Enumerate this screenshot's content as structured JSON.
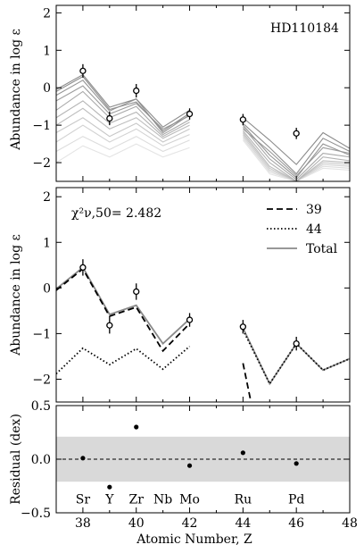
{
  "chart_data": [
    {
      "type": "line",
      "panel": "top",
      "annotation": "HD110184",
      "ylabel": "Abundance in log ε",
      "xlim": [
        37,
        48
      ],
      "ylim": [
        -2.5,
        2.2
      ],
      "yticks": [
        2,
        1,
        0,
        -1,
        -2
      ],
      "observed": [
        {
          "z": 38,
          "y": 0.45,
          "err": 0.18
        },
        {
          "z": 39,
          "y": -0.82,
          "err": 0.18
        },
        {
          "z": 40,
          "y": -0.08,
          "err": 0.18
        },
        {
          "z": 42,
          "y": -0.7,
          "err": 0.15
        },
        {
          "z": 44,
          "y": -0.85,
          "err": 0.15
        },
        {
          "z": 46,
          "y": -1.22,
          "err": 0.15
        }
      ],
      "model_lines": [
        {
          "shade": "#8a8a8a",
          "seg1": [
            -0.05,
            0.35,
            -0.52,
            -0.3,
            -1.05,
            -0.6
          ],
          "seg2": [
            -0.8,
            -1.4,
            -2.05,
            -1.2,
            -1.62,
            -1.55
          ]
        },
        {
          "shade": "#8f8f8f",
          "seg1": [
            -0.1,
            0.3,
            -0.58,
            -0.38,
            -1.15,
            -0.68
          ],
          "seg2": [
            -0.95,
            -1.6,
            -2.3,
            -1.35,
            -1.7,
            -1.6
          ]
        },
        {
          "shade": "#959595",
          "seg1": [
            -0.2,
            0.2,
            -0.62,
            -0.3,
            -1.2,
            -0.72
          ],
          "seg2": [
            -1.0,
            -1.8,
            -2.4,
            -1.5,
            -1.8,
            -1.65
          ]
        },
        {
          "shade": "#9e9e9e",
          "seg1": [
            -0.35,
            0.05,
            -0.7,
            -0.42,
            -1.1,
            -0.75
          ],
          "seg2": [
            -1.1,
            -1.7,
            -2.35,
            -1.6,
            -1.75,
            -1.7
          ]
        },
        {
          "shade": "#a8a8a8",
          "seg1": [
            -0.6,
            -0.1,
            -0.8,
            -0.5,
            -1.25,
            -0.85
          ],
          "seg2": [
            -1.05,
            -1.9,
            -2.45,
            -1.75,
            -1.85,
            -1.75
          ]
        },
        {
          "shade": "#b3b3b3",
          "seg1": [
            -0.8,
            -0.35,
            -0.95,
            -0.65,
            -1.3,
            -0.92
          ],
          "seg2": [
            -1.15,
            -2.0,
            -2.5,
            -1.85,
            -1.95,
            -1.8
          ]
        },
        {
          "shade": "#bdbdbd",
          "seg1": [
            -1.0,
            -0.55,
            -1.1,
            -0.8,
            -1.35,
            -1.0
          ],
          "seg2": [
            -1.2,
            -2.1,
            -2.5,
            -1.95,
            -2.0,
            -1.85
          ]
        },
        {
          "shade": "#c8c8c8",
          "seg1": [
            -1.2,
            -0.8,
            -1.3,
            -0.95,
            -1.45,
            -1.1
          ],
          "seg2": [
            -1.25,
            -2.15,
            -2.5,
            -2.0,
            -2.05,
            -1.9
          ]
        },
        {
          "shade": "#d2d2d2",
          "seg1": [
            -1.45,
            -1.0,
            -1.45,
            -1.1,
            -1.55,
            -1.25
          ],
          "seg2": [
            -1.3,
            -2.2,
            -2.5,
            -2.05,
            -2.1,
            -1.95
          ]
        },
        {
          "shade": "#dcdcdc",
          "seg1": [
            -1.7,
            -1.3,
            -1.65,
            -1.3,
            -1.7,
            -1.4
          ],
          "seg2": [
            -1.35,
            -2.25,
            -2.5,
            -2.1,
            -2.15,
            -2.0
          ]
        },
        {
          "shade": "#e4e4e4",
          "seg1": [
            -2.0,
            -1.55,
            -1.85,
            -1.5,
            -1.85,
            -1.6
          ],
          "seg2": [
            -1.4,
            -2.3,
            -2.5,
            -2.15,
            -2.2,
            -2.05
          ]
        }
      ]
    },
    {
      "type": "line",
      "panel": "middle",
      "annotation": "χ²ν,50= 2.482",
      "ylabel": "Abundance in log ε",
      "xlim": [
        37,
        48
      ],
      "ylim": [
        -2.5,
        2.2
      ],
      "yticks": [
        2,
        1,
        0,
        -1,
        -2
      ],
      "legend_position": "top-right",
      "legend": [
        "39",
        "44",
        "Total"
      ],
      "x": [
        37,
        38,
        39,
        40,
        41,
        42
      ],
      "series": [
        {
          "name": "39",
          "style": "dashed",
          "seg1": [
            -0.05,
            0.42,
            -0.62,
            -0.42,
            -1.38,
            -0.78
          ],
          "seg2x": [
            44,
            44.3
          ],
          "seg2": [
            -1.65,
            -2.5
          ]
        },
        {
          "name": "44",
          "style": "dotted",
          "seg1": [
            -1.88,
            -1.32,
            -1.68,
            -1.33,
            -1.78,
            -1.28
          ],
          "seg2x": [
            44,
            45,
            46,
            47,
            48
          ],
          "seg2": [
            -0.92,
            -2.1,
            -1.22,
            -1.8,
            -1.55
          ]
        },
        {
          "name": "Total",
          "style": "solid",
          "seg1": [
            -0.02,
            0.45,
            -0.58,
            -0.38,
            -1.22,
            -0.68
          ],
          "seg2x": [
            44,
            45,
            46,
            47,
            48
          ],
          "seg2": [
            -0.88,
            -2.1,
            -1.22,
            -1.8,
            -1.55
          ]
        }
      ],
      "observed": [
        {
          "z": 38,
          "y": 0.45,
          "err": 0.18
        },
        {
          "z": 39,
          "y": -0.82,
          "err": 0.18
        },
        {
          "z": 40,
          "y": -0.08,
          "err": 0.18
        },
        {
          "z": 42,
          "y": -0.7,
          "err": 0.15
        },
        {
          "z": 44,
          "y": -0.85,
          "err": 0.15
        },
        {
          "z": 46,
          "y": -1.22,
          "err": 0.15
        }
      ]
    },
    {
      "type": "scatter",
      "panel": "bottom",
      "ylabel": "Residual (dex)",
      "xlabel": "Atomic Number, Z",
      "xlim": [
        37,
        48
      ],
      "ylim": [
        -0.5,
        0.5
      ],
      "yticks": [
        "0.5",
        "0.0",
        "−0.5"
      ],
      "xticks": [
        "38",
        "40",
        "42",
        "44",
        "46",
        "48"
      ],
      "band": [
        -0.21,
        0.21
      ],
      "points": [
        {
          "z": 38,
          "y": 0.01
        },
        {
          "z": 39,
          "y": -0.26
        },
        {
          "z": 40,
          "y": 0.3
        },
        {
          "z": 42,
          "y": -0.06
        },
        {
          "z": 44,
          "y": 0.06
        },
        {
          "z": 46,
          "y": -0.04
        }
      ],
      "elements": [
        {
          "z": 38,
          "label": "Sr"
        },
        {
          "z": 39,
          "label": "Y"
        },
        {
          "z": 40,
          "label": "Zr"
        },
        {
          "z": 41,
          "label": "Nb"
        },
        {
          "z": 42,
          "label": "Mo"
        },
        {
          "z": 44,
          "label": "Ru"
        },
        {
          "z": 46,
          "label": "Pd"
        }
      ]
    }
  ]
}
